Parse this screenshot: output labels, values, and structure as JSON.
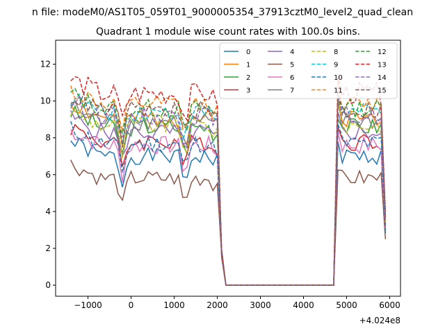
{
  "chart_data": {
    "type": "line",
    "suptitle": "n file: modeM0/AS1T05_059T01_9000005354_37913cztM0_level2_quad_clean",
    "title": "Quadrant 1 module wise count rates with 100.0s bins.",
    "xlabel": "",
    "ylabel": "",
    "x_offset_label": "+4.024e8",
    "xlim": [
      -1750,
      6250
    ],
    "ylim": [
      -0.6,
      13.3
    ],
    "xticks": [
      -1000,
      0,
      1000,
      2000,
      3000,
      4000,
      5000,
      6000
    ],
    "xtick_labels": [
      "−1000",
      "0",
      "1000",
      "2000",
      "3000",
      "4000",
      "5000",
      "6000"
    ],
    "yticks": [
      0,
      2,
      4,
      6,
      8,
      10,
      12
    ],
    "ytick_labels": [
      "0",
      "2",
      "4",
      "6",
      "8",
      "10",
      "12"
    ],
    "legend": {
      "position": "top-right",
      "columns": 4
    },
    "gap_x": [
      2100,
      2200,
      4600,
      4700
    ],
    "block1_x": [
      -1400,
      -1300,
      -1200,
      -1100,
      -1000,
      -900,
      -800,
      -700,
      -600,
      -500,
      -400,
      -300,
      -200,
      -100,
      0,
      100,
      200,
      300,
      400,
      500,
      600,
      700,
      800,
      900,
      1000,
      1100,
      1200,
      1300,
      1400,
      1500,
      1600,
      1700,
      1800,
      1900,
      2000
    ],
    "block2_x": [
      4800,
      4900,
      5000,
      5100,
      5200,
      5300,
      5400,
      5500,
      5600,
      5700,
      5800,
      5900
    ],
    "series": [
      {
        "name": "0",
        "color": "#1f77b4",
        "dash": "solid",
        "base": 7.0,
        "amp": 0.45,
        "seed": 1,
        "end": 2.8
      },
      {
        "name": "1",
        "color": "#ff7f0e",
        "dash": "solid",
        "base": 9.1,
        "amp": 0.5,
        "seed": 2,
        "end": 3.6
      },
      {
        "name": "2",
        "color": "#2ca02c",
        "dash": "solid",
        "base": 8.6,
        "amp": 0.5,
        "seed": 3,
        "end": 3.4
      },
      {
        "name": "3",
        "color": "#d62728",
        "dash": "solid",
        "base": 7.8,
        "amp": 0.5,
        "seed": 4,
        "end": 3.1
      },
      {
        "name": "4",
        "color": "#9467bd",
        "dash": "solid",
        "base": 8.3,
        "amp": 0.5,
        "seed": 5,
        "end": 3.3
      },
      {
        "name": "5",
        "color": "#8c564b",
        "dash": "solid",
        "base": 5.8,
        "amp": 0.45,
        "seed": 6,
        "end": 2.5
      },
      {
        "name": "6",
        "color": "#e377c2",
        "dash": "solid",
        "base": 7.6,
        "amp": 0.5,
        "seed": 7,
        "end": 3.0
      },
      {
        "name": "7",
        "color": "#7f7f7f",
        "dash": "solid",
        "base": 8.9,
        "amp": 0.5,
        "seed": 8,
        "end": 3.5
      },
      {
        "name": "8",
        "color": "#bcbd22",
        "dash": "dashed",
        "base": 8.7,
        "amp": 0.5,
        "seed": 9,
        "end": 3.4
      },
      {
        "name": "9",
        "color": "#17becf",
        "dash": "dashed",
        "base": 9.4,
        "amp": 0.5,
        "seed": 10,
        "end": 3.7
      },
      {
        "name": "10",
        "color": "#1f77b4",
        "dash": "dashed",
        "base": 7.7,
        "amp": 0.5,
        "seed": 11,
        "end": 3.0
      },
      {
        "name": "11",
        "color": "#ff7f0e",
        "dash": "dashed",
        "base": 9.8,
        "amp": 0.5,
        "seed": 12,
        "end": 3.8
      },
      {
        "name": "12",
        "color": "#2ca02c",
        "dash": "dashed",
        "base": 9.6,
        "amp": 0.5,
        "seed": 13,
        "end": 3.7
      },
      {
        "name": "13",
        "color": "#d62728",
        "dash": "dashed",
        "base": 10.4,
        "amp": 0.6,
        "seed": 14,
        "end": 4.0
      },
      {
        "name": "14",
        "color": "#9467bd",
        "dash": "dashed",
        "base": 9.2,
        "amp": 0.5,
        "seed": 15,
        "end": 3.6
      },
      {
        "name": "15",
        "color": "#8c564b",
        "dash": "dashed",
        "base": 9.5,
        "amp": 0.5,
        "seed": 16,
        "end": 3.7
      }
    ]
  }
}
